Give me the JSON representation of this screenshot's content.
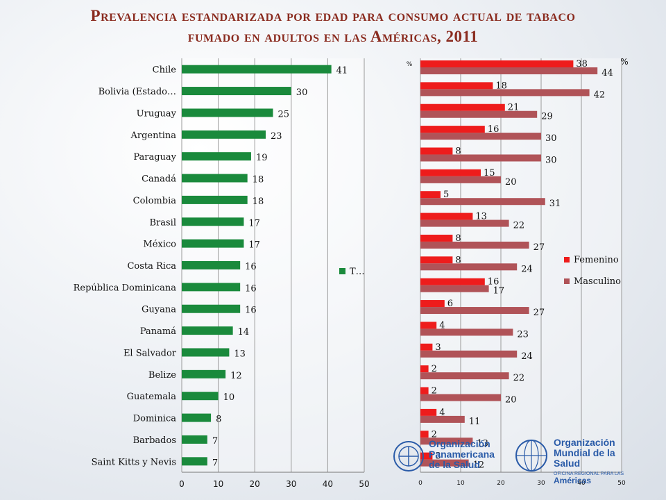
{
  "title_line1": "Prevalencia estandarizada por edad para consumo actual de tabaco",
  "title_line2": "fumado en adultos en las Américas, 2011",
  "colors": {
    "total": "#1a8a3c",
    "femenino": "#ee1c1c",
    "masculino": "#b05358",
    "title": "#8a2b1f"
  },
  "chart_data": [
    {
      "type": "bar",
      "orientation": "horizontal",
      "categories": [
        "Chile",
        "Bolivia (Estado…",
        "Uruguay",
        "Argentina",
        "Paraguay",
        "Canadá",
        "Colombia",
        "Brasil",
        "México",
        "Costa Rica",
        "República Dominicana",
        "Guyana",
        "Panamá",
        "El Salvador",
        "Belize",
        "Guatemala",
        "Dominica",
        "Barbados",
        "Saint Kitts y Nevis"
      ],
      "series": [
        {
          "name": "T…",
          "values": [
            41,
            30,
            25,
            23,
            19,
            18,
            18,
            17,
            17,
            16,
            16,
            16,
            14,
            13,
            12,
            10,
            8,
            7,
            7
          ]
        }
      ],
      "xlim": [
        0,
        50
      ],
      "xticks": [
        0,
        10,
        20,
        30,
        40,
        50
      ],
      "grid": true,
      "legend": "right"
    },
    {
      "type": "bar",
      "orientation": "horizontal",
      "unit_labels": [
        "%",
        "%"
      ],
      "series": [
        {
          "name": "Femenino",
          "values": [
            38,
            18,
            21,
            16,
            8,
            15,
            5,
            13,
            8,
            8,
            16,
            6,
            4,
            3,
            2,
            2,
            4,
            2,
            3
          ]
        },
        {
          "name": "Masculino",
          "values": [
            44,
            42,
            29,
            30,
            30,
            20,
            31,
            22,
            27,
            24,
            17,
            27,
            23,
            24,
            22,
            20,
            11,
            13,
            12
          ]
        }
      ],
      "xlim": [
        0,
        50
      ],
      "xticks": [
        0,
        10,
        20,
        30,
        40,
        50
      ],
      "grid": true,
      "legend": "right"
    }
  ],
  "logos": {
    "ops_line1": "Organización",
    "ops_line2": "Panamericana",
    "ops_line3": "de la Salud",
    "oms_line1": "Organización",
    "oms_line2": "Mundial de la Salud",
    "oms_sub": "OFICINA REGIONAL PARA LAS",
    "oms_line3": "Américas"
  }
}
